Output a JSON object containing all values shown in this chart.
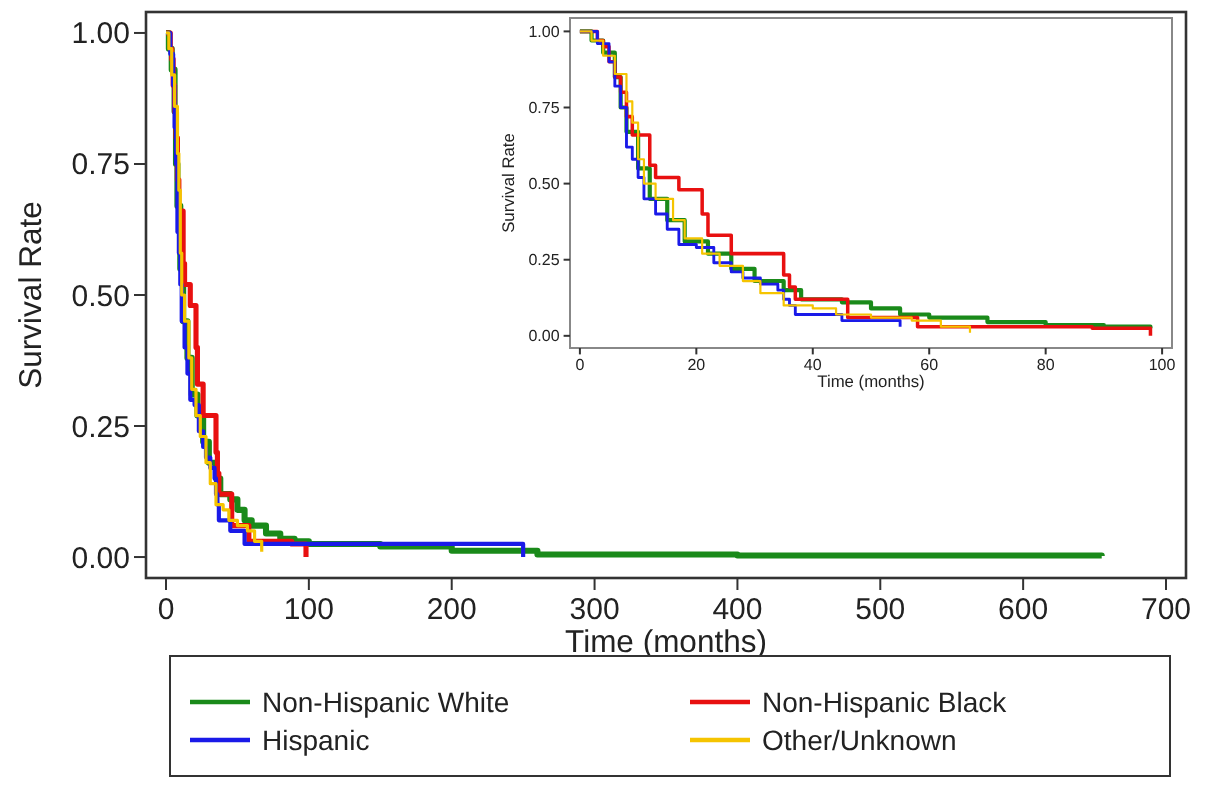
{
  "chart_data": [
    {
      "type": "step",
      "xlabel": "Time (months)",
      "ylabel": "Survival Rate",
      "xlim": [
        -14,
        714
      ],
      "ylim": [
        -0.04,
        1.04
      ],
      "xticks": [
        0,
        100,
        200,
        300,
        400,
        500,
        600,
        700
      ],
      "yticks": [
        {
          "value": 0,
          "label": "0.00"
        },
        {
          "value": 0.25,
          "label": "0.25"
        },
        {
          "value": 0.5,
          "label": "0.50"
        },
        {
          "value": 0.75,
          "label": "0.75"
        },
        {
          "value": 1,
          "label": "1.00"
        }
      ],
      "grid": false,
      "legend": "bottom",
      "series": [
        {
          "name": "Non-Hispanic White",
          "color": "#1a8a1a",
          "x": [
            0,
            2,
            4,
            6,
            7,
            8,
            10,
            12,
            15,
            18,
            22,
            26,
            30,
            35,
            38,
            45,
            50,
            55,
            60,
            70,
            80,
            90,
            100,
            150,
            200,
            260,
            400,
            655
          ],
          "values": [
            1.0,
            0.97,
            0.93,
            0.85,
            0.75,
            0.67,
            0.55,
            0.45,
            0.38,
            0.31,
            0.27,
            0.22,
            0.18,
            0.15,
            0.12,
            0.11,
            0.09,
            0.07,
            0.06,
            0.045,
            0.035,
            0.03,
            0.025,
            0.02,
            0.012,
            0.005,
            0.003,
            0.002
          ]
        },
        {
          "name": "Non-Hispanic Black",
          "color": "#e81010",
          "x": [
            0,
            3,
            4,
            5,
            6,
            7,
            8,
            9,
            12,
            13,
            17,
            21,
            22,
            26,
            35,
            36,
            37,
            46,
            58,
            88,
            98
          ],
          "values": [
            1.0,
            0.97,
            0.95,
            0.9,
            0.85,
            0.8,
            0.72,
            0.66,
            0.56,
            0.52,
            0.48,
            0.4,
            0.33,
            0.27,
            0.2,
            0.16,
            0.12,
            0.06,
            0.03,
            0.025,
            0.0
          ]
        },
        {
          "name": "Hispanic",
          "color": "#1a1ae8",
          "x": [
            0,
            3,
            5,
            6,
            7,
            8,
            9,
            10,
            11,
            13,
            15,
            17,
            20,
            23,
            26,
            28,
            31,
            34,
            35,
            36,
            37,
            45,
            55,
            250
          ],
          "values": [
            1.0,
            0.96,
            0.9,
            0.82,
            0.75,
            0.62,
            0.58,
            0.52,
            0.45,
            0.4,
            0.35,
            0.3,
            0.29,
            0.24,
            0.21,
            0.19,
            0.17,
            0.15,
            0.12,
            0.1,
            0.07,
            0.05,
            0.025,
            0.0
          ]
        },
        {
          "name": "Other/Unknown",
          "color": "#f5c400",
          "x": [
            0,
            2,
            4,
            6,
            8,
            9,
            10,
            11,
            13,
            16,
            18,
            21,
            24,
            28,
            31,
            35,
            40,
            44,
            50,
            57,
            62,
            67
          ],
          "values": [
            1.0,
            0.97,
            0.92,
            0.86,
            0.77,
            0.7,
            0.58,
            0.5,
            0.45,
            0.38,
            0.32,
            0.27,
            0.23,
            0.18,
            0.14,
            0.1,
            0.09,
            0.07,
            0.06,
            0.05,
            0.03,
            0.01
          ]
        }
      ]
    },
    {
      "type": "step",
      "xlabel": "Time (months)",
      "ylabel": "Survival Rate",
      "xlim": [
        -1.7,
        101.7
      ],
      "ylim": [
        -0.04,
        1.044
      ],
      "xticks": [
        0,
        20,
        40,
        60,
        80,
        100
      ],
      "yticks": [
        {
          "value": 0,
          "label": "0.00"
        },
        {
          "value": 0.25,
          "label": "0.25"
        },
        {
          "value": 0.5,
          "label": "0.50"
        },
        {
          "value": 0.75,
          "label": "0.75"
        },
        {
          "value": 1,
          "label": "1.00"
        }
      ],
      "grid": false,
      "series": [
        {
          "color": "#1a8a1a",
          "x": [
            0,
            2,
            4,
            6,
            7,
            8,
            10,
            12,
            15,
            18,
            22,
            26,
            30,
            35,
            38,
            45,
            50,
            55,
            60,
            70,
            80,
            90,
            98
          ],
          "values": [
            1.0,
            0.97,
            0.93,
            0.85,
            0.75,
            0.67,
            0.55,
            0.45,
            0.38,
            0.31,
            0.27,
            0.22,
            0.18,
            0.15,
            0.12,
            0.11,
            0.09,
            0.07,
            0.06,
            0.045,
            0.035,
            0.03,
            0.025
          ]
        },
        {
          "color": "#e81010",
          "x": [
            0,
            3,
            4,
            5,
            6,
            7,
            8,
            9,
            12,
            13,
            17,
            21,
            22,
            26,
            35,
            36,
            37,
            46,
            58,
            88,
            98
          ],
          "values": [
            1.0,
            0.97,
            0.95,
            0.9,
            0.85,
            0.8,
            0.72,
            0.66,
            0.56,
            0.52,
            0.48,
            0.4,
            0.33,
            0.27,
            0.2,
            0.16,
            0.12,
            0.06,
            0.03,
            0.025,
            0.0
          ]
        },
        {
          "color": "#1a1ae8",
          "x": [
            0,
            3,
            5,
            6,
            7,
            8,
            9,
            10,
            11,
            13,
            15,
            17,
            20,
            23,
            26,
            28,
            31,
            34,
            35,
            36,
            37,
            45,
            55
          ],
          "values": [
            1.0,
            0.96,
            0.9,
            0.82,
            0.75,
            0.62,
            0.58,
            0.52,
            0.45,
            0.4,
            0.35,
            0.3,
            0.29,
            0.24,
            0.21,
            0.19,
            0.17,
            0.15,
            0.12,
            0.1,
            0.07,
            0.05,
            0.03
          ]
        },
        {
          "color": "#f5c400",
          "x": [
            0,
            2,
            4,
            6,
            8,
            9,
            10,
            11,
            13,
            16,
            18,
            21,
            24,
            28,
            31,
            35,
            40,
            44,
            50,
            57,
            62,
            67
          ],
          "values": [
            1.0,
            0.97,
            0.92,
            0.86,
            0.77,
            0.7,
            0.58,
            0.5,
            0.45,
            0.38,
            0.32,
            0.27,
            0.23,
            0.18,
            0.14,
            0.1,
            0.09,
            0.07,
            0.06,
            0.05,
            0.03,
            0.01
          ]
        }
      ]
    }
  ]
}
